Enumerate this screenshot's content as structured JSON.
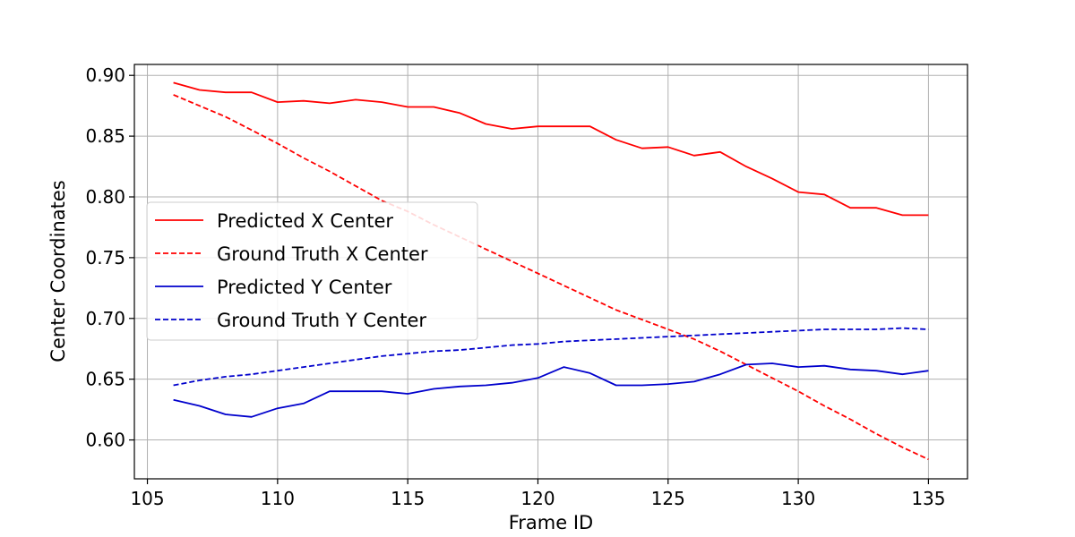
{
  "chart_data": {
    "type": "line",
    "title": "",
    "xlabel": "Frame ID",
    "ylabel": "Center Coordinates",
    "xlim": [
      104.5,
      136.5
    ],
    "ylim": [
      0.568,
      0.909
    ],
    "xticks": [
      105,
      110,
      115,
      120,
      125,
      130,
      135
    ],
    "xtick_labels": [
      "105",
      "110",
      "115",
      "120",
      "125",
      "130",
      "135"
    ],
    "yticks": [
      0.6,
      0.65,
      0.7,
      0.75,
      0.8,
      0.85,
      0.9
    ],
    "ytick_labels": [
      "0.60",
      "0.65",
      "0.70",
      "0.75",
      "0.80",
      "0.85",
      "0.90"
    ],
    "grid": true,
    "legend_position": "center-left",
    "x": [
      106,
      107,
      108,
      109,
      110,
      111,
      112,
      113,
      114,
      115,
      116,
      117,
      118,
      119,
      120,
      121,
      122,
      123,
      124,
      125,
      126,
      127,
      128,
      129,
      130,
      131,
      132,
      133,
      134,
      135
    ],
    "series": [
      {
        "name": "Predicted X Center",
        "color": "#ff0000",
        "dash": "solid",
        "values": [
          0.894,
          0.888,
          0.886,
          0.886,
          0.878,
          0.879,
          0.877,
          0.88,
          0.878,
          0.874,
          0.874,
          0.869,
          0.86,
          0.856,
          0.858,
          0.858,
          0.858,
          0.847,
          0.84,
          0.841,
          0.834,
          0.837,
          0.825,
          0.815,
          0.804,
          0.802,
          0.791,
          0.791,
          0.785,
          0.785
        ]
      },
      {
        "name": "Ground Truth X Center",
        "color": "#ff0000",
        "dash": "dashed",
        "values": [
          0.884,
          0.875,
          0.866,
          0.855,
          0.844,
          0.832,
          0.821,
          0.809,
          0.797,
          0.788,
          0.777,
          0.767,
          0.757,
          0.747,
          0.737,
          0.727,
          0.717,
          0.707,
          0.699,
          0.691,
          0.683,
          0.673,
          0.662,
          0.651,
          0.64,
          0.628,
          0.617,
          0.605,
          0.594,
          0.584
        ]
      },
      {
        "name": "Predicted Y Center",
        "color": "#0000cc",
        "dash": "solid",
        "values": [
          0.633,
          0.628,
          0.621,
          0.619,
          0.626,
          0.63,
          0.64,
          0.64,
          0.64,
          0.638,
          0.642,
          0.644,
          0.645,
          0.647,
          0.651,
          0.66,
          0.655,
          0.645,
          0.645,
          0.646,
          0.648,
          0.654,
          0.662,
          0.663,
          0.66,
          0.661,
          0.658,
          0.657,
          0.654,
          0.657
        ]
      },
      {
        "name": "Ground Truth Y Center",
        "color": "#0000cc",
        "dash": "dashed",
        "values": [
          0.645,
          0.649,
          0.652,
          0.654,
          0.657,
          0.66,
          0.663,
          0.666,
          0.669,
          0.671,
          0.673,
          0.674,
          0.676,
          0.678,
          0.679,
          0.681,
          0.682,
          0.683,
          0.684,
          0.685,
          0.686,
          0.687,
          0.688,
          0.689,
          0.69,
          0.691,
          0.691,
          0.691,
          0.692,
          0.691
        ]
      }
    ]
  }
}
